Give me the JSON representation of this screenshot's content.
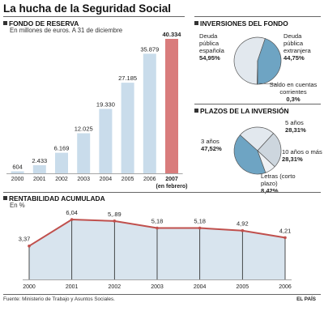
{
  "title": "La hucha de la Seguridad Social",
  "fondo": {
    "heading": "FONDO DE RESERVA",
    "subtitle": "En millones de euros. A 31 de diciembre",
    "highlight_color": "#d97c7c",
    "bar_color": "#c9dceb",
    "last_sub": "(en febrero)"
  },
  "inversiones": {
    "heading": "INVERSIONES DEL FONDO",
    "colors": [
      "#e2e8ee",
      "#6ea4c3",
      "#e8ecef"
    ],
    "labels": [
      {
        "name": "Deuda pública española",
        "value": "54,95%"
      },
      {
        "name": "Deuda pública extranjera",
        "value": "44,75%"
      },
      {
        "name": "Saldo en cuentas corrientes",
        "value": "0,3%"
      }
    ]
  },
  "plazos": {
    "heading": "PLAZOS DE LA INVERSIÓN",
    "colors": [
      "#6ea4c3",
      "#e2e8ee",
      "#cdd6de",
      "#eef1f4"
    ],
    "labels": [
      {
        "name": "3 años",
        "value": "47,52%"
      },
      {
        "name": "5 años",
        "value": "28,31%"
      },
      {
        "name": "10 años o más",
        "value": "28,31%"
      },
      {
        "name": "Letras (corto plazo)",
        "value": "8,42%"
      }
    ]
  },
  "rentabilidad": {
    "heading": "RENTABILIDAD ACUMULADA",
    "subtitle": "En %",
    "line_color": "#c0504d",
    "fill_color": "#d8e4ee"
  },
  "footer": {
    "source": "Fuente: Ministerio de Trabajo y Asuntos Sociales.",
    "brand": "EL PAÍS"
  },
  "chart_data": [
    {
      "type": "bar",
      "categories": [
        "2000",
        "2001",
        "2002",
        "2003",
        "2004",
        "2005",
        "2006",
        "2007"
      ],
      "values": [
        604,
        2433,
        6169,
        12025,
        19330,
        27185,
        35879,
        40334
      ],
      "value_labels": [
        "604",
        "2.433",
        "6.169",
        "12.025",
        "19.330",
        "27.185",
        "35.879",
        "40.334"
      ],
      "ylim": [
        0,
        40334
      ]
    },
    {
      "type": "pie",
      "labels": [
        "Deuda pública española",
        "Deuda pública extranjera",
        "Saldo en cuentas corrientes"
      ],
      "values": [
        54.95,
        44.75,
        0.3
      ]
    },
    {
      "type": "pie",
      "labels": [
        "3 años",
        "5 años",
        "10 años o más",
        "Letras (corto plazo)"
      ],
      "values": [
        47.52,
        28.31,
        28.31,
        8.42
      ]
    },
    {
      "type": "area",
      "x": [
        "2000",
        "2001",
        "2002",
        "2003",
        "2004",
        "2005",
        "2006"
      ],
      "values": [
        3.37,
        6.04,
        5.89,
        5.18,
        5.18,
        4.92,
        4.21
      ],
      "value_labels": [
        "3,37",
        "6,04",
        "5,.89",
        "5,18",
        "5,18",
        "4,92",
        "4,21"
      ],
      "ylim": [
        0,
        6.04
      ]
    }
  ]
}
